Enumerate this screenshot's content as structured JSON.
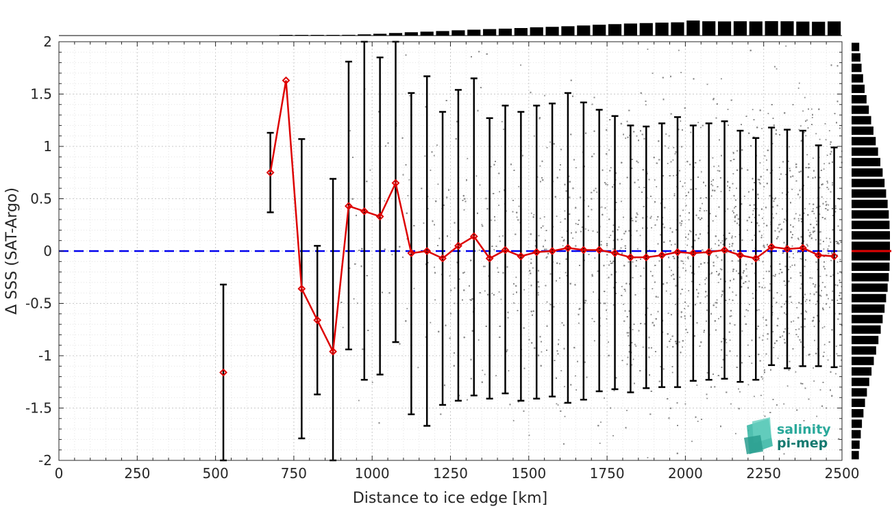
{
  "chart_data": {
    "type": "scatter",
    "title": "",
    "xlabel": "Distance to ice edge [km]",
    "ylabel": "Δ SSS (SAT-Argo)",
    "xlim": [
      0,
      2500
    ],
    "ylim": [
      -2,
      2
    ],
    "xticks": [
      0,
      250,
      500,
      750,
      1000,
      1250,
      1500,
      1750,
      2000,
      2250,
      2500
    ],
    "yticks": [
      -2,
      -1.5,
      -1,
      -0.5,
      0,
      0.5,
      1,
      1.5,
      2
    ],
    "grid": true,
    "reference_line": {
      "y": 0,
      "style": "dashed",
      "color": "#0000ee"
    },
    "colors": {
      "scatter": "#8c8c8c",
      "mean_line": "#dd0000",
      "error_bars": "#000000",
      "histogram": "#000000",
      "reference": "#0000ee"
    },
    "series": [
      {
        "kind": "binned_mean_with_std",
        "x": [
          525,
          675,
          725,
          775,
          825,
          875,
          925,
          975,
          1025,
          1075,
          1125,
          1175,
          1225,
          1275,
          1325,
          1375,
          1425,
          1475,
          1525,
          1575,
          1625,
          1675,
          1725,
          1775,
          1825,
          1875,
          1925,
          1975,
          2025,
          2075,
          2125,
          2175,
          2225,
          2275,
          2325,
          2375,
          2425,
          2475
        ],
        "mean": [
          -1.16,
          0.75,
          1.63,
          -0.36,
          -0.66,
          -0.96,
          0.43,
          0.38,
          0.33,
          0.65,
          -0.02,
          0.0,
          -0.07,
          0.05,
          0.14,
          -0.07,
          0.01,
          -0.05,
          -0.01,
          0.0,
          0.03,
          0.01,
          0.01,
          -0.02,
          -0.06,
          -0.06,
          -0.04,
          -0.01,
          -0.02,
          -0.01,
          0.01,
          -0.04,
          -0.07,
          0.04,
          0.02,
          0.03,
          -0.04,
          -0.05
        ],
        "upper": [
          -0.32,
          1.13,
          1.63,
          1.07,
          0.05,
          0.69,
          1.81,
          2.0,
          1.85,
          2.0,
          1.51,
          1.67,
          1.33,
          1.54,
          1.65,
          1.27,
          1.39,
          1.33,
          1.39,
          1.41,
          1.51,
          1.42,
          1.35,
          1.29,
          1.2,
          1.19,
          1.22,
          1.28,
          1.2,
          1.22,
          1.24,
          1.15,
          1.08,
          1.18,
          1.16,
          1.15,
          1.01,
          0.99
        ],
        "lower": [
          -2.0,
          0.37,
          1.63,
          -1.79,
          -1.37,
          -2.0,
          -0.94,
          -1.23,
          -1.18,
          -0.87,
          -1.56,
          -1.67,
          -1.47,
          -1.43,
          -1.38,
          -1.41,
          -1.36,
          -1.43,
          -1.41,
          -1.39,
          -1.45,
          -1.42,
          -1.34,
          -1.32,
          -1.35,
          -1.31,
          -1.3,
          -1.3,
          -1.24,
          -1.23,
          -1.22,
          -1.25,
          -1.23,
          -1.09,
          -1.12,
          -1.1,
          -1.1,
          -1.11
        ]
      }
    ],
    "scatter_cloud": {
      "count": 9000,
      "x_range": [
        900,
        2500
      ],
      "y_range": [
        -2,
        2
      ],
      "description_density_rises_with_distance": true
    },
    "top_histogram": {
      "bin_centers": [
        725,
        775,
        825,
        875,
        925,
        975,
        1025,
        1075,
        1125,
        1175,
        1225,
        1275,
        1325,
        1375,
        1425,
        1475,
        1525,
        1575,
        1625,
        1675,
        1725,
        1775,
        1825,
        1875,
        1925,
        1975,
        2025,
        2075,
        2125,
        2175,
        2225,
        2275,
        2325,
        2375,
        2425,
        2475
      ],
      "relative_heights": [
        0.01,
        0.01,
        0.02,
        0.03,
        0.05,
        0.08,
        0.12,
        0.17,
        0.22,
        0.26,
        0.3,
        0.35,
        0.39,
        0.43,
        0.46,
        0.5,
        0.55,
        0.58,
        0.62,
        0.67,
        0.72,
        0.76,
        0.8,
        0.83,
        0.86,
        0.88,
        1.0,
        0.95,
        0.94,
        0.95,
        0.94,
        0.96,
        0.95,
        0.93,
        0.92,
        0.94
      ]
    },
    "right_histogram": {
      "bin_centers": [
        1.95,
        1.85,
        1.75,
        1.65,
        1.55,
        1.45,
        1.35,
        1.25,
        1.15,
        1.05,
        0.95,
        0.85,
        0.75,
        0.65,
        0.55,
        0.45,
        0.35,
        0.25,
        0.15,
        0.05,
        -0.05,
        -0.15,
        -0.25,
        -0.35,
        -0.45,
        -0.55,
        -0.65,
        -0.75,
        -0.85,
        -0.95,
        -1.05,
        -1.15,
        -1.25,
        -1.35,
        -1.45,
        -1.55,
        -1.65,
        -1.75,
        -1.85,
        -1.95
      ],
      "relative_heights": [
        0.2,
        0.23,
        0.26,
        0.3,
        0.34,
        0.39,
        0.45,
        0.51,
        0.57,
        0.63,
        0.69,
        0.75,
        0.81,
        0.86,
        0.9,
        0.94,
        0.97,
        0.99,
        1.0,
        1.0,
        1.0,
        0.99,
        0.97,
        0.94,
        0.9,
        0.86,
        0.81,
        0.76,
        0.7,
        0.64,
        0.58,
        0.52,
        0.46,
        0.4,
        0.35,
        0.31,
        0.27,
        0.24,
        0.21,
        0.19
      ],
      "mean_marker": 0
    }
  },
  "logo": {
    "line1": "salinity",
    "line2": "pi-mep",
    "color_line1": "#2aa99b",
    "color_line2": "#157a70"
  }
}
